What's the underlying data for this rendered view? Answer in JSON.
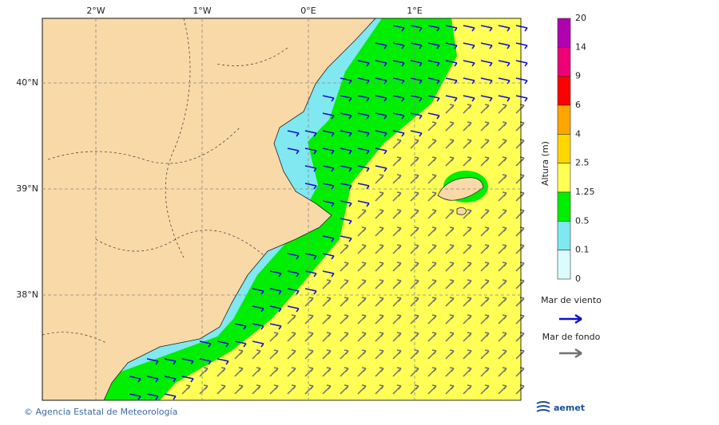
{
  "axes": {
    "x_labels": [
      "2°W",
      "1°W",
      "0°E",
      "1°E"
    ],
    "y_labels": [
      "40°N",
      "39°N",
      "38°N"
    ]
  },
  "legend": {
    "title": "Altura (m)",
    "levels": [
      20,
      14,
      9,
      6,
      4,
      2.5,
      1.25,
      0.5,
      0.1,
      0
    ],
    "colors": [
      "#b000b0",
      "#ee0077",
      "#ff0000",
      "#ffa500",
      "#ffd700",
      "#ffff55",
      "#00ee00",
      "#80e8f0",
      "#d9fdfd"
    ],
    "wind_sea": "Mar de viento",
    "wind_sea_color": "#1010d0",
    "swell": "Mar de fondo",
    "swell_color": "#707070"
  },
  "footer": {
    "copyright": "© Agencia Estatal de Meteorología",
    "logo": "aemet"
  }
}
